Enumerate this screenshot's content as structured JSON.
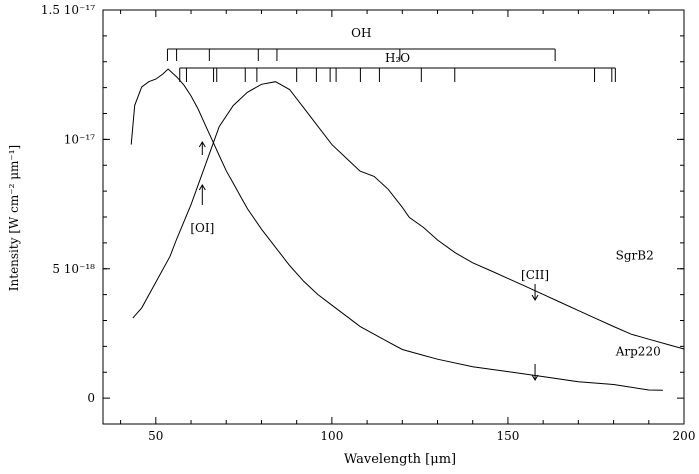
{
  "chart_data": {
    "type": "line",
    "xlabel": "Wavelength [μm]",
    "ylabel": "Intensity [W cm⁻² μm⁻¹]",
    "xlim": [
      35,
      200
    ],
    "ylim": [
      -1e-18,
      1.5e-17
    ],
    "x_ticks": [
      50,
      100,
      150,
      200
    ],
    "y_tick_labels": [
      {
        "value": 0,
        "label": "0"
      },
      {
        "value": 5e-18,
        "label": "5 10⁻¹⁸"
      },
      {
        "value": 1e-17,
        "label": "10⁻¹⁷"
      },
      {
        "value": 1.5e-17,
        "label": "1.5 10⁻¹⁷"
      }
    ],
    "series": [
      {
        "name": "SgrB2",
        "x": [
          43.5,
          46,
          50,
          54,
          56,
          60,
          64,
          68,
          72,
          76,
          80,
          84,
          88,
          92,
          96,
          100,
          104,
          108,
          112,
          116,
          120,
          122,
          126,
          130,
          135,
          140,
          145,
          150,
          155,
          160,
          165,
          170,
          175,
          180,
          185,
          190,
          195,
          200
        ],
        "y": [
          3.1e-18,
          3.5e-18,
          4.5e-18,
          5.5e-18,
          6.2e-18,
          7.5e-18,
          9e-18,
          1.05e-17,
          1.13e-17,
          1.18e-17,
          1.21e-17,
          1.22e-17,
          1.19e-17,
          1.12e-17,
          1.05e-17,
          9.8e-18,
          9.3e-18,
          8.8e-18,
          8.6e-18,
          8.1e-18,
          7.4e-18,
          7e-18,
          6.6e-18,
          6.1e-18,
          5.6e-18,
          5.2e-18,
          4.9e-18,
          4.6e-18,
          4.3e-18,
          4e-18,
          3.7e-18,
          3.4e-18,
          3.1e-18,
          2.8e-18,
          2.5e-18,
          2.3e-18,
          2.1e-18,
          1.9e-18
        ]
      },
      {
        "name": "Arp220",
        "x": [
          43,
          44,
          46,
          48,
          50,
          52,
          53.5,
          56,
          58,
          60,
          62,
          64,
          66,
          68,
          70,
          72,
          74,
          76,
          80,
          84,
          88,
          92,
          96,
          100,
          104,
          108,
          112,
          116,
          120,
          125,
          130,
          140,
          150,
          160,
          170,
          180,
          190,
          194
        ],
        "y": [
          9.8e-18,
          1.13e-17,
          1.2e-17,
          1.22e-17,
          1.23e-17,
          1.25e-17,
          1.27e-17,
          1.24e-17,
          1.21e-17,
          1.17e-17,
          1.12e-17,
          1.06e-17,
          1e-17,
          9.4e-18,
          8.8e-18,
          8.3e-18,
          7.8e-18,
          7.3e-18,
          6.5e-18,
          5.8e-18,
          5.1e-18,
          4.5e-18,
          4e-18,
          3.6e-18,
          3.2e-18,
          2.8e-18,
          2.5e-18,
          2.2e-18,
          1.9e-18,
          1.7e-18,
          1.5e-18,
          1.2e-18,
          1e-18,
          8e-19,
          6e-19,
          5e-19,
          3e-19,
          3e-19
        ]
      }
    ],
    "line_identifications": {
      "OH": {
        "label": "OH",
        "lines": [
          53.3,
          55.9,
          65.2,
          79.1,
          84.4,
          119.3,
          163.4
        ]
      },
      "H2O": {
        "label": "H₂O",
        "lines": [
          56.8,
          58.7,
          66.4,
          67.3,
          75.4,
          78.7,
          90.0,
          95.6,
          99.5,
          101.2,
          108.1,
          113.5,
          125.4,
          134.9,
          174.6,
          179.5,
          180.5
        ]
      }
    },
    "annotations": [
      {
        "text": "[OI]",
        "x": 63.2
      },
      {
        "text": "[CII]",
        "x": 157.7
      }
    ],
    "grid": false
  }
}
